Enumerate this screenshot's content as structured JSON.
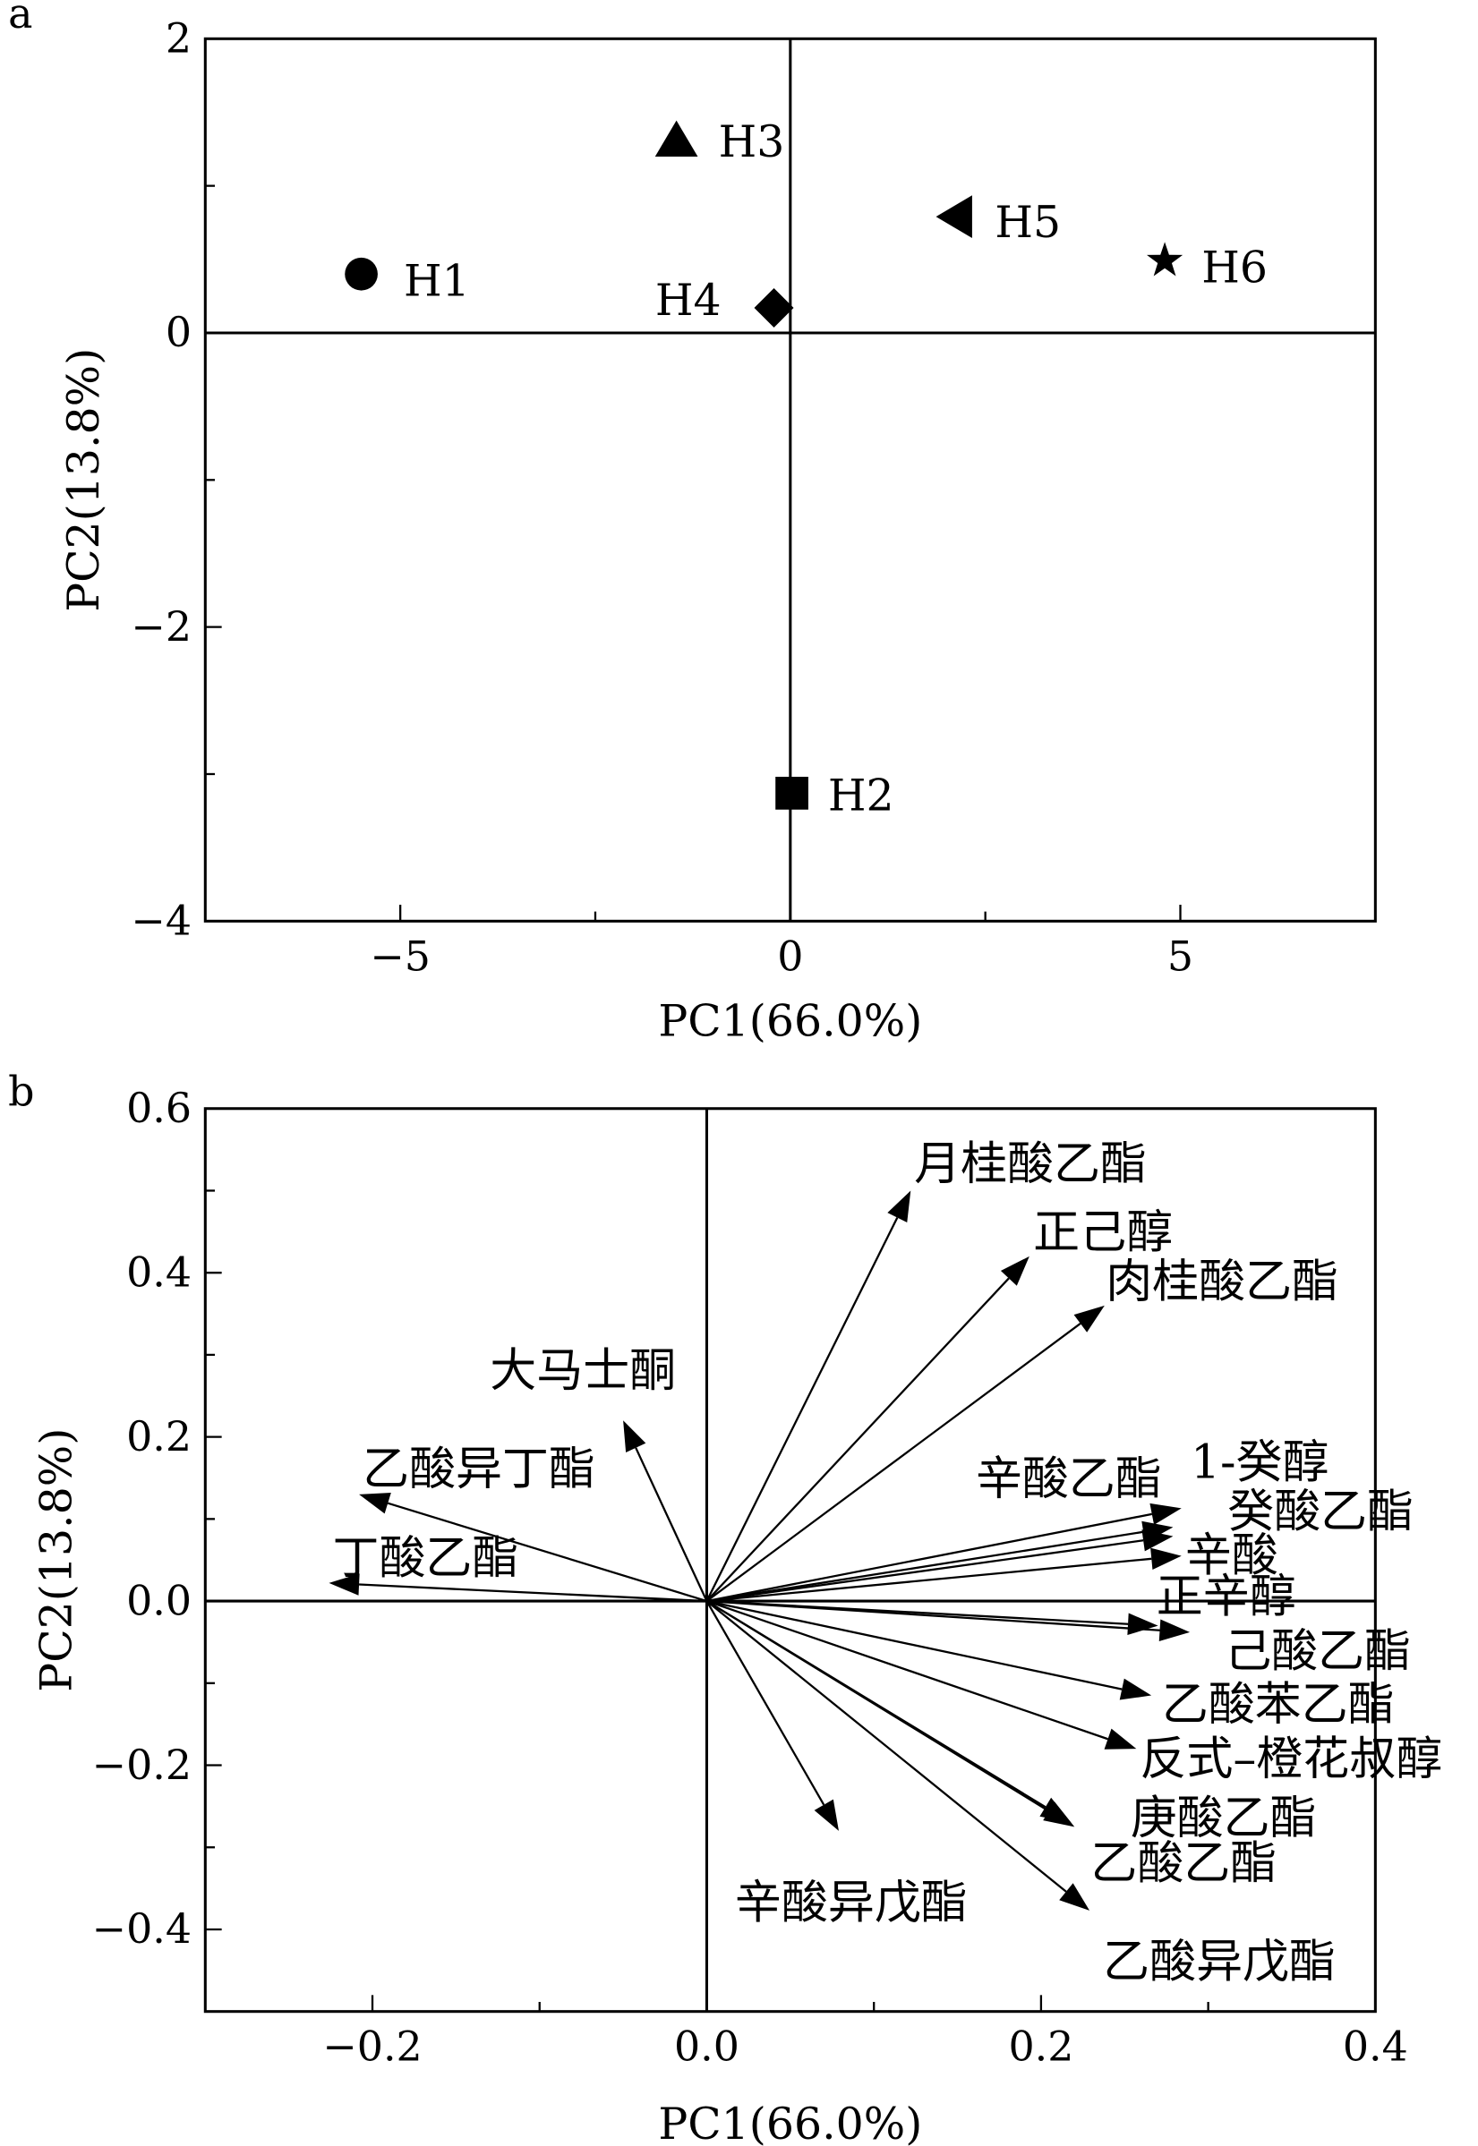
{
  "chart_data": [
    {
      "panel_label": "a",
      "type": "scatter",
      "xlabel": "PC1(66.0%)",
      "ylabel": "PC2(13.8%)",
      "xlim": [
        -7.5,
        7.5
      ],
      "ylim": [
        -4,
        2
      ],
      "xticks": [
        {
          "v": -5,
          "label": "−5"
        },
        {
          "v": 0,
          "label": "0"
        },
        {
          "v": 5,
          "label": "5"
        }
      ],
      "yticks": [
        {
          "v": 2,
          "label": "2"
        },
        {
          "v": 0,
          "label": "0"
        },
        {
          "v": -2,
          "label": "−2"
        },
        {
          "v": -4,
          "label": "−4"
        }
      ],
      "grid": false,
      "reference_lines": {
        "x": 0,
        "y": 0
      },
      "points": [
        {
          "name": "H1",
          "marker": "circle",
          "x": -5.5,
          "y": 0.4
        },
        {
          "name": "H2",
          "marker": "square",
          "x": 0.02,
          "y": -3.13
        },
        {
          "name": "H3",
          "marker": "triangle-up",
          "x": -1.46,
          "y": 1.31
        },
        {
          "name": "H4",
          "marker": "diamond",
          "x": -0.21,
          "y": 0.17
        },
        {
          "name": "H5",
          "marker": "triangle-left",
          "x": 2.12,
          "y": 0.79
        },
        {
          "name": "H6",
          "marker": "star",
          "x": 4.8,
          "y": 0.49
        }
      ]
    },
    {
      "panel_label": "b",
      "type": "scatter",
      "subtype": "loading-vectors",
      "xlabel": "PC1(66.0%)",
      "ylabel": "PC2(13.8%)",
      "xlim": [
        -0.3,
        0.4
      ],
      "ylim": [
        -0.5,
        0.6
      ],
      "xticks": [
        {
          "v": -0.2,
          "label": "−0.2"
        },
        {
          "v": 0,
          "label": "0.0"
        },
        {
          "v": 0.2,
          "label": "0.2"
        },
        {
          "v": 0.4,
          "label": "0.4"
        }
      ],
      "yticks": [
        {
          "v": 0.6,
          "label": "0.6"
        },
        {
          "v": 0.4,
          "label": "0.4"
        },
        {
          "v": 0.2,
          "label": "0.2"
        },
        {
          "v": 0,
          "label": "0.0"
        },
        {
          "v": -0.2,
          "label": "−0.2"
        },
        {
          "v": -0.4,
          "label": "−0.4"
        }
      ],
      "grid": false,
      "reference_lines": {
        "x": 0,
        "y": 0
      },
      "vectors": [
        {
          "name": "月桂酸乙酯",
          "x": 0.122,
          "y": 0.5
        },
        {
          "name": "正己醇",
          "x": 0.193,
          "y": 0.42
        },
        {
          "name": "肉桂酸乙酯",
          "x": 0.238,
          "y": 0.36
        },
        {
          "name": "大马士酮",
          "x": -0.05,
          "y": 0.22
        },
        {
          "name": "乙酸异丁酯",
          "x": -0.208,
          "y": 0.13
        },
        {
          "name": "丁酸乙酯",
          "x": -0.226,
          "y": 0.022
        },
        {
          "name": "辛酸乙酯",
          "x": 0.279,
          "y": 0.09
        },
        {
          "name": "1-癸醇",
          "x": 0.284,
          "y": 0.113
        },
        {
          "name": "癸酸乙酯",
          "x": 0.279,
          "y": 0.079
        },
        {
          "name": "辛酸",
          "x": 0.284,
          "y": 0.055
        },
        {
          "name": "正辛醇",
          "x": 0.27,
          "y": -0.03
        },
        {
          "name": "己酸乙酯",
          "x": 0.289,
          "y": -0.038
        },
        {
          "name": "乙酸苯乙酯",
          "x": 0.266,
          "y": -0.115
        },
        {
          "name": "反式–橙花叔醇",
          "x": 0.257,
          "y": -0.18
        },
        {
          "name": "庚酸乙酯",
          "x": 0.218,
          "y": -0.27
        },
        {
          "name": "乙酸乙酯",
          "x": 0.22,
          "y": -0.275
        },
        {
          "name": "乙酸异戊酯",
          "x": 0.229,
          "y": -0.377
        },
        {
          "name": "辛酸异戊酯",
          "x": 0.079,
          "y": -0.28
        }
      ]
    }
  ]
}
